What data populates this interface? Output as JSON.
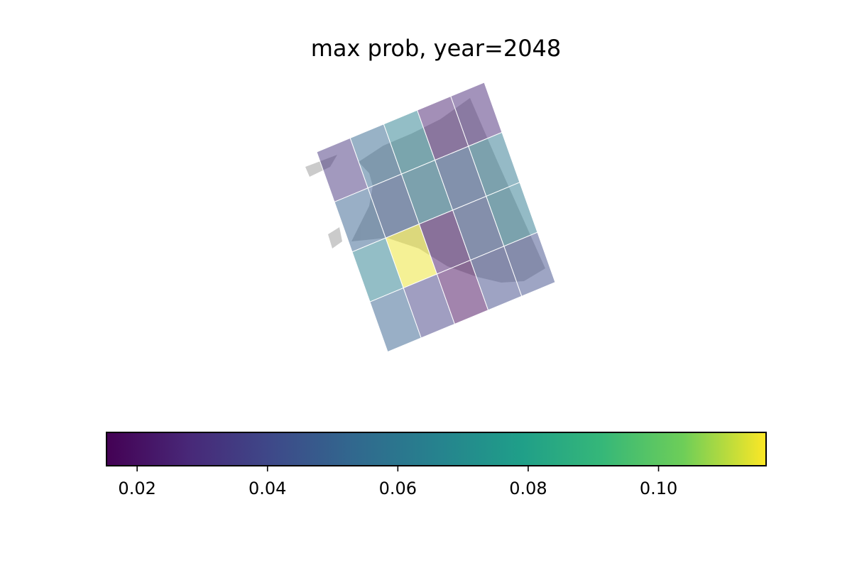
{
  "chart_data": {
    "type": "heatmap",
    "title": "max prob, year=2048",
    "grid": "4 rows x 5 cols, rotated map overlay",
    "rows": 4,
    "cols": 5,
    "cell_values": [
      [
        0.032,
        0.052,
        0.064,
        0.025,
        0.028
      ],
      [
        0.05,
        0.046,
        0.06,
        0.046,
        0.06
      ],
      [
        0.064,
        0.115,
        0.022,
        0.044,
        0.061
      ],
      [
        0.05,
        0.036,
        0.018,
        0.04,
        0.042
      ]
    ],
    "colorbar": {
      "cmap": "viridis",
      "vmin": 0.0153,
      "vmax": 0.1165,
      "orientation": "horizontal",
      "ticks": [
        0.02,
        0.04,
        0.06,
        0.08,
        0.1
      ],
      "tick_labels": [
        "0.02",
        "0.04",
        "0.06",
        "0.08",
        "0.10"
      ]
    },
    "colors": {
      "land_shape": "#000000",
      "cell_border": "#ffffff"
    }
  }
}
